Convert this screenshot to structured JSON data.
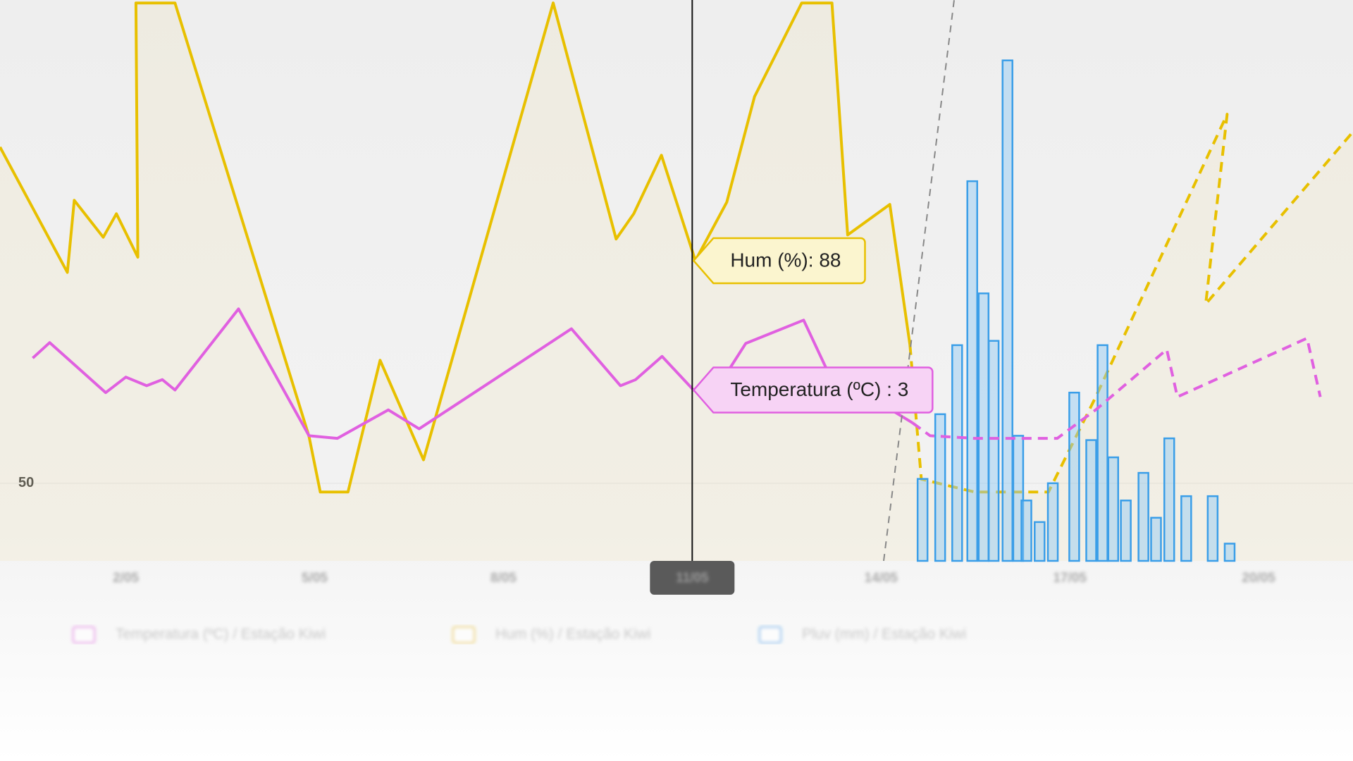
{
  "chart_data": {
    "type": "line",
    "xticks": [
      {
        "value": 2,
        "label": "2/05"
      },
      {
        "value": 5,
        "label": "5/05"
      },
      {
        "value": 8,
        "label": "8/05"
      },
      {
        "value": 11,
        "label": "11/05"
      },
      {
        "value": 14,
        "label": "14/05"
      },
      {
        "value": 17,
        "label": "17/05"
      },
      {
        "value": 20,
        "label": "20/05"
      }
    ],
    "xlim": [
      0,
      21.5
    ],
    "ylim": [
      36.75,
      132.5
    ],
    "yticks": [
      50
    ],
    "y2lim": [
      -6.9,
      25.6
    ],
    "y3lim": [
      0,
      65
    ],
    "forecast_from": 14.5,
    "cursor_x": 11,
    "tooltips": [
      {
        "text": "Hum (%): 88",
        "series": 1,
        "value": 88
      },
      {
        "text": "Temperatura (ºC) : 3",
        "series": 0,
        "value": 3
      }
    ],
    "series": [
      {
        "name": "Temperatura (ºC) / Estação Kiwi",
        "type": "line",
        "axis": "y2",
        "color": "#e060e0",
        "x": [
          0.52,
          0.79,
          1.68,
          2,
          2.33,
          2.58,
          2.78,
          3.79,
          4.91,
          5.36,
          6.17,
          6.66,
          9.08,
          9.86,
          10.1,
          10.52,
          11.02,
          11.57,
          11.85,
          12.77,
          13.15,
          14.5,
          14.78,
          15.49,
          16.8,
          17.41,
          18.54,
          18.71,
          20.77,
          20.98
        ],
        "values": [
          4.85,
          5.75,
          2.85,
          3.75,
          3.25,
          3.6,
          3,
          7.7,
          0.35,
          0.2,
          1.85,
          0.75,
          6.55,
          3.25,
          3.6,
          4.95,
          3,
          4.1,
          5.7,
          7.05,
          4.1,
          1.1,
          0.35,
          0.2,
          0.2,
          1.85,
          5.35,
          2.6,
          6,
          2.6
        ]
      },
      {
        "name": "Hum (%) / Estação Kiwi",
        "type": "area",
        "axis": "y",
        "color": "#e8c000",
        "x": [
          0,
          1.07,
          1.18,
          1.64,
          1.85,
          2.19,
          2.16,
          2.78,
          4.91,
          5.09,
          5.53,
          6.04,
          6.73,
          8.79,
          9.79,
          10.07,
          10.51,
          11.05,
          11.55,
          11.99,
          12.74,
          13.22,
          13.47,
          14.14,
          14.46,
          14.64,
          15.49,
          16.66,
          17.41,
          19.5,
          19.16,
          21.5
        ],
        "values": [
          107.4,
          86,
          98.3,
          92,
          96,
          88.6,
          132,
          132,
          58,
          48.5,
          48.5,
          71,
          54,
          132,
          91.7,
          96,
          106,
          88,
          98,
          116,
          132,
          132,
          92.4,
          97.6,
          73.6,
          50.7,
          48.5,
          48.5,
          64.7,
          113,
          80.6,
          110
        ]
      },
      {
        "name": "Pluv (mm) / Estação Kiwi",
        "type": "bar",
        "axis": "y3",
        "color": "#3a9ee8",
        "x": [
          14.66,
          14.94,
          15.21,
          15.45,
          15.63,
          15.79,
          16.01,
          16.18,
          16.31,
          16.52,
          16.73,
          17.07,
          17.34,
          17.52,
          17.69,
          17.89,
          18.17,
          18.37,
          18.58,
          18.85,
          19.27,
          19.54
        ],
        "values": [
          9.5,
          17,
          25,
          44,
          31,
          25.5,
          58,
          14.5,
          7,
          4.5,
          9,
          19.5,
          14,
          25,
          12,
          7,
          10.2,
          5,
          14.2,
          7.5,
          7.5,
          2
        ]
      }
    ]
  }
}
